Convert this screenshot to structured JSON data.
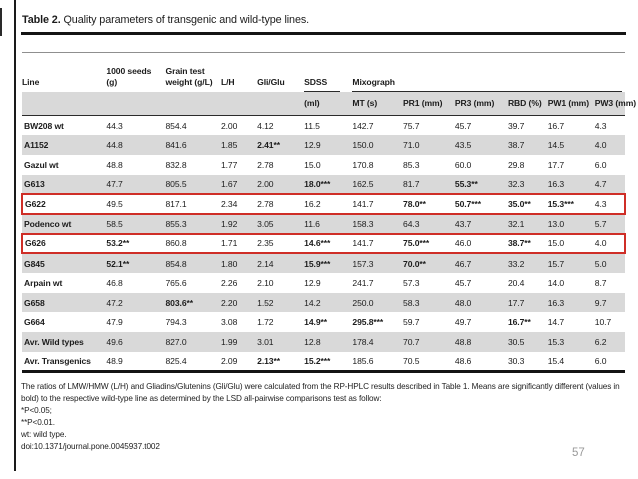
{
  "page": {
    "number": "57"
  },
  "colors": {
    "highlight_border": "#cf2e27",
    "row_band": "#d9d9d9",
    "page_number_gray": "#9a9a9a"
  },
  "table": {
    "title_label": "Table 2.",
    "title_text": " Quality parameters of transgenic and wild-type lines.",
    "header": {
      "line": "Line",
      "seeds": "1000 seeds (g)",
      "grain": "Grain test weight (g/L)",
      "lh": "L/H",
      "gliglu": "Gli/Glu",
      "sdss": "SDSS",
      "mixograph": "Mixograph",
      "sub": [
        "(ml)",
        "MT (s)",
        "PR1 (mm)",
        "PR3 (mm)",
        "RBD (%)",
        "PW1 (mm)",
        "PW3 (mm)"
      ]
    },
    "rows": [
      {
        "line": "BW208 wt",
        "values": [
          "44.3",
          "854.4",
          "2.00",
          "4.12",
          "11.5",
          "142.7",
          "75.7",
          "45.7",
          "39.7",
          "16.7",
          "4.3"
        ],
        "bold": [],
        "highlighted": false
      },
      {
        "line": "A1152",
        "values": [
          "44.8",
          "841.6",
          "1.85",
          "2.41**",
          "12.9",
          "150.0",
          "71.0",
          "43.5",
          "38.7",
          "14.5",
          "4.0"
        ],
        "bold": [
          3
        ],
        "highlighted": false
      },
      {
        "line": "Gazul wt",
        "values": [
          "48.8",
          "832.8",
          "1.77",
          "2.78",
          "15.0",
          "170.8",
          "85.3",
          "60.0",
          "29.8",
          "17.7",
          "6.0"
        ],
        "bold": [],
        "highlighted": false
      },
      {
        "line": "G613",
        "values": [
          "47.7",
          "805.5",
          "1.67",
          "2.00",
          "18.0***",
          "162.5",
          "81.7",
          "55.3**",
          "32.3",
          "16.3",
          "4.7"
        ],
        "bold": [
          4,
          7
        ],
        "highlighted": false
      },
      {
        "line": "G622",
        "values": [
          "49.5",
          "817.1",
          "2.34",
          "2.78",
          "16.2",
          "141.7",
          "78.0**",
          "50.7***",
          "35.0**",
          "15.3***",
          "4.3"
        ],
        "bold": [
          6,
          7,
          8,
          9
        ],
        "highlighted": true
      },
      {
        "line": "Podenco wt",
        "values": [
          "58.5",
          "855.3",
          "1.92",
          "3.05",
          "11.6",
          "158.3",
          "64.3",
          "43.7",
          "32.1",
          "13.0",
          "5.7"
        ],
        "bold": [],
        "highlighted": false
      },
      {
        "line": "G626",
        "values": [
          "53.2**",
          "860.8",
          "1.71",
          "2.35",
          "14.6***",
          "141.7",
          "75.0***",
          "46.0",
          "38.7**",
          "15.0",
          "4.0"
        ],
        "bold": [
          0,
          4,
          6,
          8
        ],
        "highlighted": true
      },
      {
        "line": "G845",
        "values": [
          "52.1**",
          "854.8",
          "1.80",
          "2.14",
          "15.9***",
          "157.3",
          "70.0**",
          "46.7",
          "33.2",
          "15.7",
          "5.0"
        ],
        "bold": [
          0,
          4,
          6
        ],
        "highlighted": false
      },
      {
        "line": "Arpain wt",
        "values": [
          "46.8",
          "765.6",
          "2.26",
          "2.10",
          "12.9",
          "241.7",
          "57.3",
          "45.7",
          "20.4",
          "14.0",
          "8.7"
        ],
        "bold": [],
        "highlighted": false
      },
      {
        "line": "G658",
        "values": [
          "47.2",
          "803.6**",
          "2.20",
          "1.52",
          "14.2",
          "250.0",
          "58.3",
          "48.0",
          "17.7",
          "16.3",
          "9.7"
        ],
        "bold": [
          1
        ],
        "highlighted": false
      },
      {
        "line": "G664",
        "values": [
          "47.9",
          "794.3",
          "3.08",
          "1.72",
          "14.9**",
          "295.8***",
          "59.7",
          "49.7",
          "16.7**",
          "14.7",
          "10.7"
        ],
        "bold": [
          4,
          5,
          8
        ],
        "highlighted": false
      },
      {
        "line": "Avr. Wild types",
        "values": [
          "49.6",
          "827.0",
          "1.99",
          "3.01",
          "12.8",
          "178.4",
          "70.7",
          "48.8",
          "30.5",
          "15.3",
          "6.2"
        ],
        "bold": [],
        "highlighted": false
      },
      {
        "line": "Avr. Transgenics",
        "values": [
          "48.9",
          "825.4",
          "2.09",
          "2.13**",
          "15.2***",
          "185.6",
          "70.5",
          "48.6",
          "30.3",
          "15.4",
          "6.0"
        ],
        "bold": [
          3,
          4
        ],
        "highlighted": false
      }
    ]
  },
  "footnotes": {
    "main": "The ratios of LMW/HMW (L/H) and Gliadins/Glutenins (Gli/Glu) were calculated from the RP-HPLC results described in Table 1. Means are significantly different (values in bold) to the respective wild-type line as determined by the LSD all-pairwise comparisons test as follow:",
    "p1": "*P<0.05;",
    "p2": "**P<0.01.",
    "wt": "wt: wild type.",
    "doi": "doi:10.1371/journal.pone.0045937.t002"
  }
}
